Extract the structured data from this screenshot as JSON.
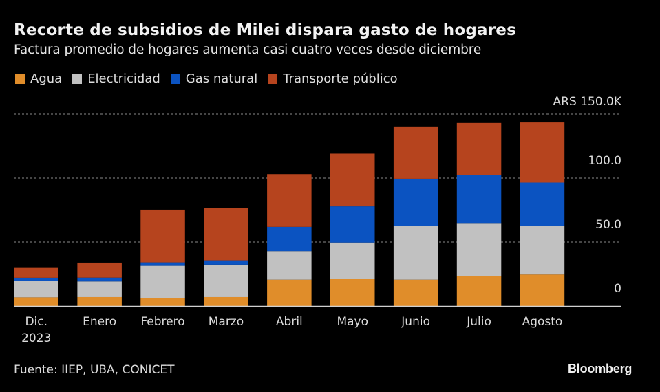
{
  "header": {
    "title": "Recorte de subsidios de Milei dispara gasto de hogares",
    "subtitle": "Factura promedio de hogares aumenta casi cuatro veces desde diciembre"
  },
  "legend": [
    {
      "label": "Agua",
      "color": "#e08d2a"
    },
    {
      "label": "Electricidad",
      "color": "#c1c1c1"
    },
    {
      "label": "Gas natural",
      "color": "#0b53c1"
    },
    {
      "label": "Transporte público",
      "color": "#b6441e"
    }
  ],
  "footer": {
    "source": "Fuente: IIEP, UBA, CONICET",
    "brand": "Bloomberg"
  },
  "chart_data": {
    "type": "bar",
    "stacked": true,
    "title": "Recorte de subsidios de Milei dispara gasto de hogares",
    "subtitle": "Factura promedio de hogares aumenta casi cuatro veces desde diciembre",
    "xlabel": "",
    "ylabel": "",
    "unit_label": "ARS 150.0K",
    "categories": [
      [
        "Dic.",
        "2023"
      ],
      [
        "Enero"
      ],
      [
        "Febrero"
      ],
      [
        "Marzo"
      ],
      [
        "Abril"
      ],
      [
        "Mayo"
      ],
      [
        "Junio"
      ],
      [
        "Julio"
      ],
      [
        "Agosto"
      ]
    ],
    "series": [
      {
        "name": "Agua",
        "color": "#e08d2a",
        "values": [
          6.8,
          7.0,
          6.3,
          7.0,
          20.6,
          21.1,
          20.6,
          23.3,
          24.6
        ]
      },
      {
        "name": "Electricidad",
        "color": "#c1c1c1",
        "values": [
          12.6,
          12.2,
          25.1,
          25.3,
          22.3,
          28.5,
          42.2,
          41.6,
          38.2
        ]
      },
      {
        "name": "Gas natural",
        "color": "#0b53c1",
        "values": [
          2.7,
          3.0,
          2.7,
          3.4,
          19.0,
          28.3,
          36.7,
          37.3,
          33.7
        ]
      },
      {
        "name": "Transporte público",
        "color": "#b6441e",
        "values": [
          8.2,
          11.7,
          41.2,
          41.1,
          41.2,
          41.2,
          40.9,
          40.9,
          47.0
        ]
      }
    ],
    "y_ticks": [
      {
        "value": 0,
        "label": "0"
      },
      {
        "value": 50,
        "label": "50.0"
      },
      {
        "value": 100,
        "label": "100.0"
      },
      {
        "value": 150,
        "label": "ARS 150.0K"
      }
    ],
    "ylim": [
      0,
      150
    ],
    "grid": true,
    "legend_position": "top-left"
  }
}
